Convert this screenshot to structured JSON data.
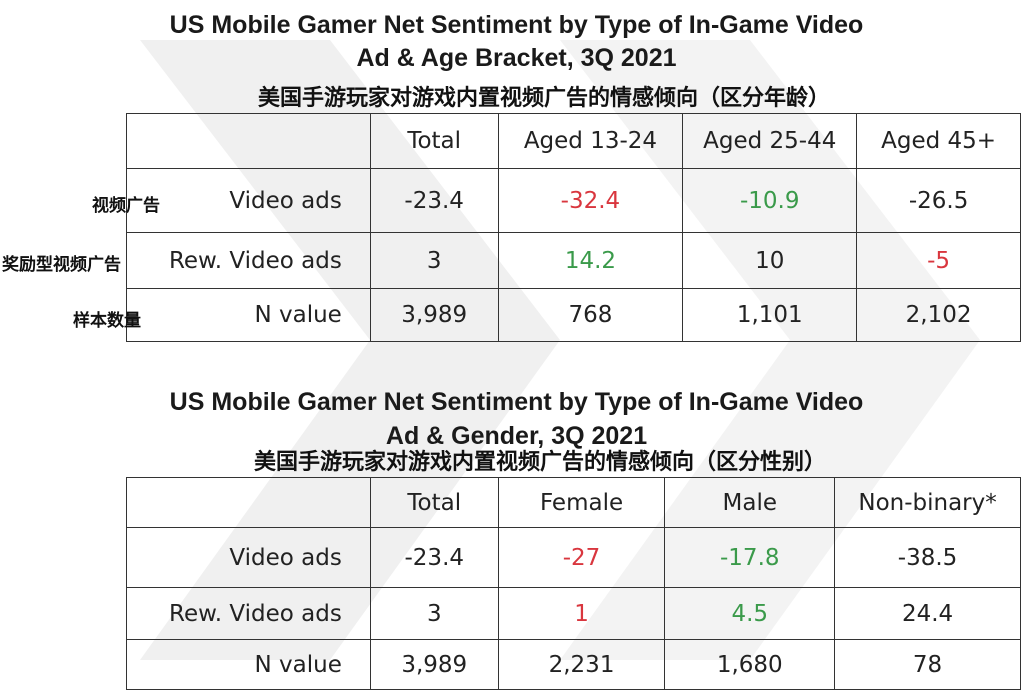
{
  "colors": {
    "negative": "#d9363e",
    "positive": "#3a9a4a",
    "text": "#222222"
  },
  "table1": {
    "title_line1": "US Mobile Gamer Net Sentiment by Type of In-Game Video",
    "title_line2": "Ad & Age Bracket, 3Q 2021",
    "subtitle_cn": "美国手游玩家对游戏内置视频广告的情感倾向（区分年龄）",
    "headers": [
      "",
      "Total",
      "Aged 13-24",
      "Aged 25-44",
      "Aged 45+"
    ],
    "rows": [
      {
        "cn": "视频广告",
        "label": "Video ads",
        "cells": [
          "-23.4",
          "-32.4",
          "-10.9",
          "-26.5"
        ],
        "colors": [
          "",
          "red",
          "green",
          ""
        ]
      },
      {
        "cn": "奖励型视频广告",
        "label": "Rew. Video ads",
        "cells": [
          "3",
          "14.2",
          "10",
          "-5"
        ],
        "colors": [
          "",
          "green",
          "",
          "red"
        ]
      },
      {
        "cn": "样本数量",
        "label": "N value",
        "cells": [
          "3,989",
          "768",
          "1,101",
          "2,102"
        ],
        "colors": [
          "",
          "",
          "",
          ""
        ]
      }
    ]
  },
  "table2": {
    "title_line1": "US Mobile Gamer Net Sentiment by Type of In-Game Video",
    "title_line2": "Ad & Gender, 3Q 2021",
    "subtitle_cn": "美国手游玩家对游戏内置视频广告的情感倾向（区分性别）",
    "headers": [
      "",
      "Total",
      "Female",
      "Male",
      "Non-binary*"
    ],
    "rows": [
      {
        "label": "Video ads",
        "cells": [
          "-23.4",
          "-27",
          "-17.8",
          "-38.5"
        ],
        "colors": [
          "",
          "red",
          "green",
          ""
        ]
      },
      {
        "label": "Rew. Video ads",
        "cells": [
          "3",
          "1",
          "4.5",
          "24.4"
        ],
        "colors": [
          "",
          "red",
          "green",
          ""
        ]
      },
      {
        "label": "N value",
        "cells": [
          "3,989",
          "2,231",
          "1,680",
          "78"
        ],
        "colors": [
          "",
          "",
          "",
          ""
        ]
      }
    ]
  }
}
